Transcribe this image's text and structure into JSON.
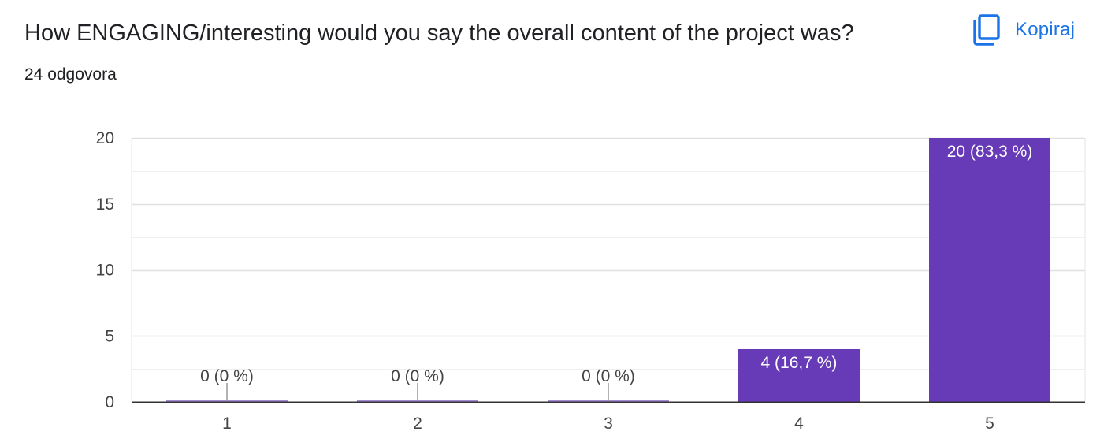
{
  "question": {
    "title": "How ENGAGING/interesting would you say the overall content of the project was?",
    "responses": "24 odgovora"
  },
  "copy_button": {
    "label": "Kopiraj",
    "icon": "copy-icon"
  },
  "colors": {
    "bar": "#673ab7",
    "accent": "#1a73e8",
    "gridline": "#e6e6e6",
    "axis": "#333333",
    "inside_label": "#ffffff",
    "outside_label": "#444444"
  },
  "chart_data": {
    "type": "bar",
    "categories": [
      "1",
      "2",
      "3",
      "4",
      "5"
    ],
    "values": [
      0,
      0,
      0,
      4,
      20
    ],
    "data_labels": [
      "0 (0 %)",
      "0 (0 %)",
      "0 (0 %)",
      "4 (16,7 %)",
      "20 (83,3 %)"
    ],
    "ylim": [
      0,
      20
    ],
    "yticks": [
      0,
      5,
      10,
      15,
      20
    ],
    "title": "",
    "xlabel": "",
    "ylabel": "",
    "grid": true,
    "legend": "none"
  }
}
